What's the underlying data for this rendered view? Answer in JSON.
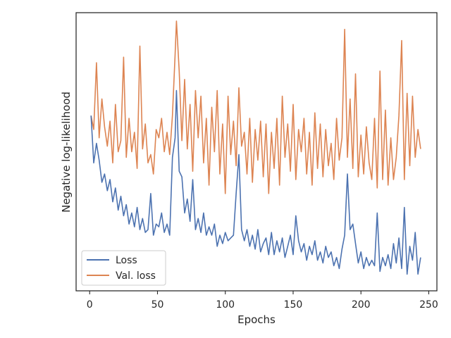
{
  "chart_data": {
    "type": "line",
    "xlabel": "Epochs",
    "ylabel": "Negative log-likelihood",
    "xlim": [
      -10,
      256
    ],
    "ylim": [
      0,
      1
    ],
    "xticks": [
      0,
      50,
      100,
      150,
      200,
      250
    ],
    "xtick_labels": [
      "0",
      "50",
      "100",
      "150",
      "200",
      "250"
    ],
    "show_yticks": false,
    "grid": false,
    "legend_position": "lower-left",
    "series": [
      {
        "name": "Loss",
        "color": "#4c72b0",
        "x": [
          1,
          3,
          5,
          7,
          9,
          11,
          13,
          15,
          17,
          19,
          21,
          23,
          25,
          27,
          29,
          31,
          33,
          35,
          37,
          39,
          41,
          43,
          45,
          47,
          49,
          51,
          53,
          55,
          57,
          59,
          61,
          63,
          64,
          66,
          68,
          70,
          72,
          74,
          76,
          78,
          80,
          82,
          84,
          86,
          88,
          90,
          92,
          94,
          96,
          98,
          100,
          102,
          104,
          106,
          108,
          110,
          112,
          114,
          116,
          118,
          120,
          122,
          124,
          126,
          128,
          130,
          132,
          134,
          136,
          138,
          140,
          142,
          144,
          146,
          148,
          150,
          152,
          154,
          156,
          158,
          160,
          162,
          164,
          166,
          168,
          170,
          172,
          174,
          176,
          178,
          180,
          182,
          184,
          186,
          188,
          190,
          192,
          194,
          196,
          198,
          200,
          202,
          204,
          206,
          208,
          210,
          212,
          214,
          216,
          218,
          220,
          222,
          224,
          226,
          228,
          230,
          232,
          234,
          236,
          238,
          240,
          242,
          244
        ],
        "y": [
          0.63,
          0.46,
          0.53,
          0.47,
          0.39,
          0.42,
          0.36,
          0.4,
          0.32,
          0.37,
          0.29,
          0.34,
          0.27,
          0.31,
          0.24,
          0.28,
          0.23,
          0.3,
          0.22,
          0.26,
          0.21,
          0.22,
          0.35,
          0.2,
          0.24,
          0.23,
          0.28,
          0.21,
          0.24,
          0.2,
          0.48,
          0.55,
          0.72,
          0.43,
          0.41,
          0.28,
          0.33,
          0.25,
          0.4,
          0.22,
          0.26,
          0.21,
          0.28,
          0.2,
          0.23,
          0.2,
          0.24,
          0.16,
          0.2,
          0.17,
          0.21,
          0.18,
          0.19,
          0.2,
          0.35,
          0.49,
          0.22,
          0.18,
          0.22,
          0.16,
          0.2,
          0.15,
          0.22,
          0.14,
          0.17,
          0.19,
          0.13,
          0.21,
          0.13,
          0.18,
          0.14,
          0.19,
          0.12,
          0.16,
          0.2,
          0.13,
          0.27,
          0.18,
          0.14,
          0.17,
          0.11,
          0.16,
          0.13,
          0.18,
          0.11,
          0.14,
          0.1,
          0.16,
          0.12,
          0.14,
          0.09,
          0.12,
          0.08,
          0.15,
          0.2,
          0.42,
          0.22,
          0.24,
          0.17,
          0.1,
          0.14,
          0.08,
          0.12,
          0.09,
          0.11,
          0.09,
          0.28,
          0.07,
          0.12,
          0.09,
          0.13,
          0.08,
          0.17,
          0.1,
          0.19,
          0.08,
          0.3,
          0.06,
          0.16,
          0.11,
          0.21,
          0.06,
          0.12
        ]
      },
      {
        "name": "Val. loss",
        "color": "#dd8452",
        "x": [
          1,
          3,
          5,
          7,
          9,
          11,
          13,
          15,
          17,
          19,
          21,
          23,
          25,
          27,
          29,
          31,
          33,
          35,
          37,
          39,
          41,
          43,
          45,
          47,
          49,
          51,
          53,
          55,
          57,
          59,
          61,
          63,
          64,
          66,
          68,
          70,
          72,
          74,
          76,
          78,
          80,
          82,
          84,
          86,
          88,
          90,
          92,
          94,
          96,
          98,
          100,
          102,
          104,
          106,
          108,
          110,
          112,
          114,
          116,
          118,
          120,
          122,
          124,
          126,
          128,
          130,
          132,
          134,
          136,
          138,
          140,
          142,
          144,
          146,
          148,
          150,
          152,
          154,
          156,
          158,
          160,
          162,
          164,
          166,
          168,
          170,
          172,
          174,
          176,
          178,
          180,
          182,
          184,
          186,
          188,
          190,
          192,
          194,
          196,
          198,
          200,
          202,
          204,
          206,
          208,
          210,
          212,
          214,
          216,
          218,
          220,
          222,
          224,
          226,
          228,
          230,
          232,
          234,
          236,
          238,
          240,
          242,
          244
        ],
        "y": [
          0.63,
          0.58,
          0.82,
          0.55,
          0.69,
          0.59,
          0.52,
          0.61,
          0.46,
          0.67,
          0.5,
          0.54,
          0.84,
          0.48,
          0.62,
          0.5,
          0.57,
          0.44,
          0.88,
          0.51,
          0.6,
          0.46,
          0.49,
          0.42,
          0.58,
          0.55,
          0.62,
          0.5,
          0.57,
          0.49,
          0.63,
          0.85,
          0.97,
          0.79,
          0.54,
          0.76,
          0.51,
          0.67,
          0.43,
          0.72,
          0.55,
          0.7,
          0.46,
          0.62,
          0.38,
          0.66,
          0.5,
          0.72,
          0.42,
          0.6,
          0.35,
          0.7,
          0.49,
          0.61,
          0.45,
          0.73,
          0.52,
          0.57,
          0.42,
          0.62,
          0.39,
          0.58,
          0.47,
          0.61,
          0.41,
          0.6,
          0.35,
          0.57,
          0.44,
          0.62,
          0.38,
          0.7,
          0.48,
          0.6,
          0.43,
          0.67,
          0.4,
          0.58,
          0.5,
          0.62,
          0.42,
          0.57,
          0.38,
          0.64,
          0.44,
          0.6,
          0.41,
          0.58,
          0.45,
          0.53,
          0.4,
          0.62,
          0.47,
          0.55,
          0.94,
          0.48,
          0.69,
          0.44,
          0.78,
          0.41,
          0.56,
          0.42,
          0.59,
          0.46,
          0.4,
          0.62,
          0.37,
          0.79,
          0.4,
          0.65,
          0.38,
          0.55,
          0.4,
          0.48,
          0.63,
          0.9,
          0.4,
          0.71,
          0.45,
          0.7,
          0.48,
          0.58,
          0.51
        ]
      }
    ]
  }
}
